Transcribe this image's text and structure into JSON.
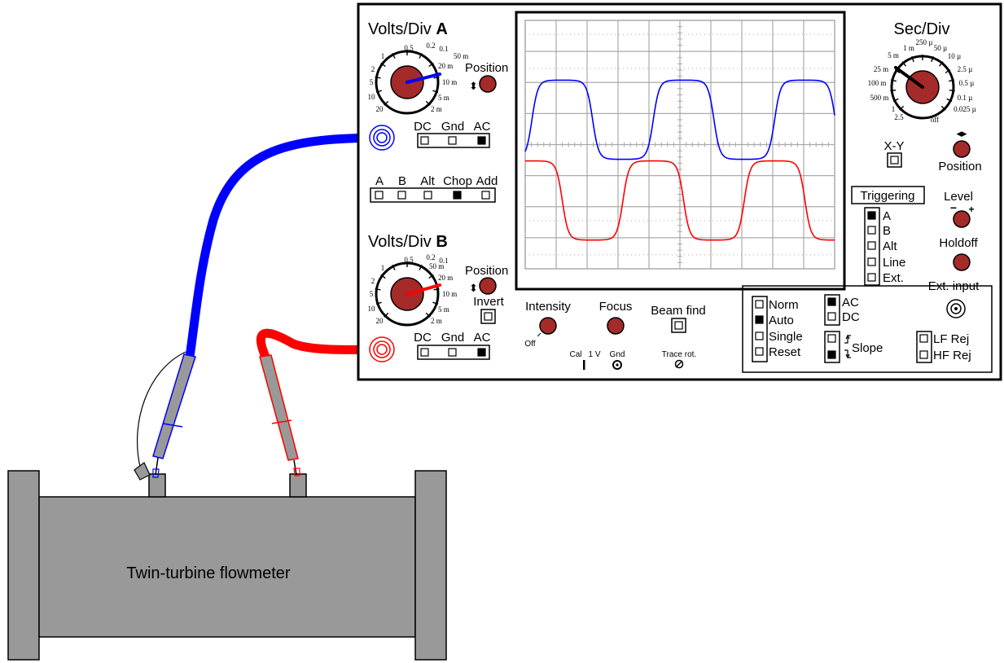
{
  "colors": {
    "channel_a": "#0000ff",
    "channel_b": "#ff0000",
    "knob": "#a52a2a",
    "flowmeter": "#999999",
    "probe_body": "#999999",
    "grid": "#aaaaaa"
  },
  "flowmeter": {
    "label": "Twin-turbine flowmeter"
  },
  "channel_a": {
    "title": "Volts/Div",
    "title_letter": "A",
    "dial_labels": [
      "0.5",
      "0.2",
      "0.1",
      "50 m",
      "20 m",
      "10 m",
      "5 m",
      "2 m",
      "1",
      "2",
      "5",
      "10",
      "20"
    ],
    "position_label": "Position",
    "coupling": {
      "labels": [
        "DC",
        "Gnd",
        "AC"
      ],
      "selected": "AC"
    }
  },
  "channel_b": {
    "title": "Volts/Div",
    "title_letter": "B",
    "dial_labels": [
      "0.5",
      "0.2",
      "0.1",
      "50 m",
      "20 m",
      "10 m",
      "5 m",
      "2 m",
      "1",
      "2",
      "5",
      "10",
      "20"
    ],
    "position_label": "Position",
    "invert_label": "Invert",
    "coupling": {
      "labels": [
        "DC",
        "Gnd",
        "AC"
      ],
      "selected": "AC"
    }
  },
  "vertical_mode": {
    "labels": [
      "A",
      "B",
      "Alt",
      "Chop",
      "Add"
    ],
    "selected": "Chop"
  },
  "display_controls": {
    "intensity_label": "Intensity",
    "off_label": "Off",
    "focus_label": "Focus",
    "beam_find_label": "Beam find",
    "cal_label": "Cal",
    "cal_value": "1 V",
    "gnd_label": "Gnd",
    "trace_rot_label": "Trace rot."
  },
  "timebase": {
    "title": "Sec/Div",
    "dial_labels": [
      "250 µ",
      "1 m",
      "50 µ",
      "5 m",
      "10 µ",
      "25 m",
      "2.5 µ",
      "100 m",
      "0.5 µ",
      "500 m",
      "0.1 µ",
      "1",
      "0.025 µ",
      "2.5",
      "off"
    ],
    "xy_label": "X-Y",
    "position_label": "Position"
  },
  "triggering": {
    "title": "Triggering",
    "sources": [
      "A",
      "B",
      "Alt",
      "Line",
      "Ext."
    ],
    "source_selected": "A",
    "level_label": "Level",
    "level_minus": "−",
    "level_plus": "+",
    "holdoff_label": "Holdoff",
    "ext_input_label": "Ext. input",
    "modes": [
      "Norm",
      "Auto",
      "Single",
      "Reset"
    ],
    "mode_selected": "Auto",
    "coupling": [
      "AC",
      "DC"
    ],
    "coupling_selected": "AC",
    "slope_label": "Slope",
    "slope_selected": "negative",
    "reject": [
      "LF Rej",
      "HF Rej"
    ]
  },
  "screen": {
    "divisions_x": 10,
    "divisions_y": 8,
    "channel_a_trace": {
      "vertical_center_div": 4.8,
      "amplitude_div": 2.55,
      "cycles_on_screen": 2.55,
      "phase_deg": -20
    },
    "channel_b_trace": {
      "vertical_center_div": 2.2,
      "amplitude_div": 2.55,
      "cycles_on_screen": 2.55,
      "phase_deg": 70
    }
  }
}
